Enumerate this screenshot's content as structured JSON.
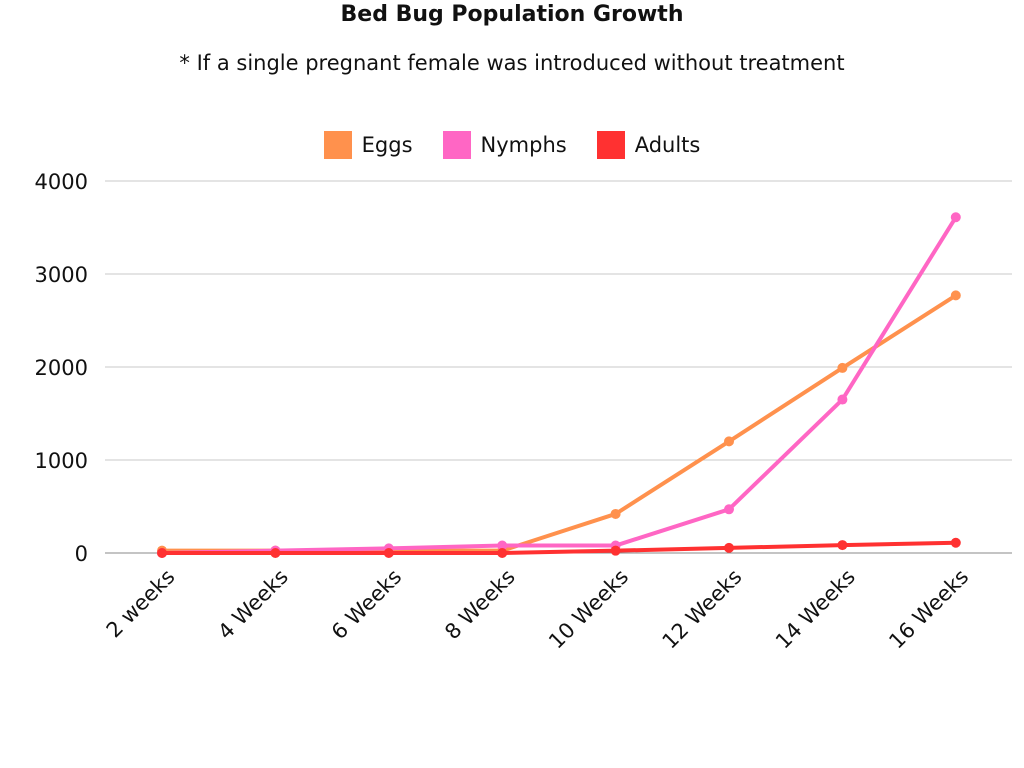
{
  "chart_data": {
    "type": "line",
    "title": "Bed Bug Population Growth",
    "subtitle": "* If a single pregnant female was introduced without treatment",
    "categories": [
      "2 weeks",
      "4 Weeks",
      "6 Weeks",
      "8 Weeks",
      "10 Weeks",
      "12 Weeks",
      "14 Weeks",
      "16 Weeks"
    ],
    "series": [
      {
        "name": "Eggs",
        "color": "#FF914D",
        "values": [
          25,
          25,
          25,
          25,
          420,
          1200,
          1990,
          2770
        ]
      },
      {
        "name": "Nymphs",
        "color": "#FF66C4",
        "values": [
          0,
          25,
          50,
          80,
          80,
          470,
          1650,
          3610
        ]
      },
      {
        "name": "Adults",
        "color": "#FF3131",
        "values": [
          0,
          0,
          0,
          0,
          25,
          55,
          85,
          110
        ]
      }
    ],
    "yticks": [
      0,
      1000,
      2000,
      3000,
      4000
    ],
    "ylim": [
      0,
      4000
    ],
    "xlabel": "",
    "ylabel": "",
    "grid": true,
    "legend_position": "top-center"
  }
}
